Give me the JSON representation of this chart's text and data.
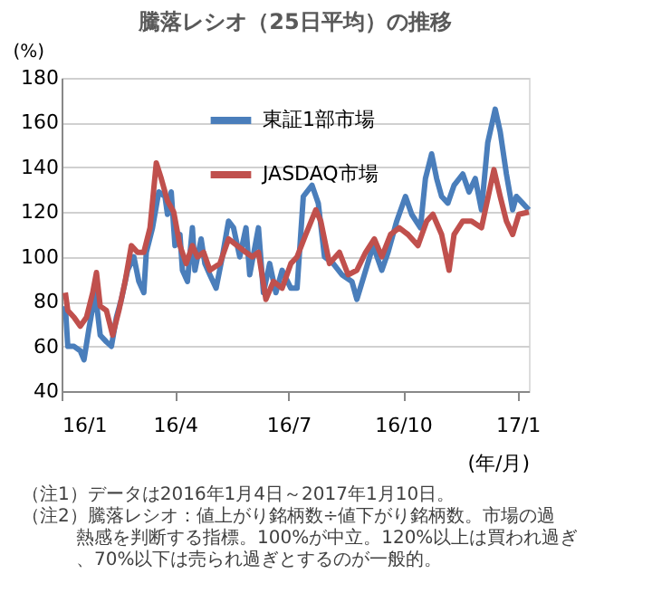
{
  "chart_data": {
    "type": "line",
    "title": "騰落レシオ（25日平均）の推移",
    "ylabel": "(%)",
    "xlabel": "(年/月)",
    "xlim": [
      "2016-01-01",
      "2017-01-10"
    ],
    "ylim": [
      40,
      180
    ],
    "yticks": [
      40,
      60,
      80,
      100,
      120,
      140,
      160,
      180
    ],
    "xticks": [
      {
        "value": "2016-01-01",
        "label": "16/1"
      },
      {
        "value": "2016-04-01",
        "label": "16/4"
      },
      {
        "value": "2016-07-01",
        "label": "16/7"
      },
      {
        "value": "2016-10-01",
        "label": "16/10"
      },
      {
        "value": "2017-01-01",
        "label": "17/1"
      }
    ],
    "grid": "y",
    "legend": "top right",
    "marker": "none",
    "line_style": "solid",
    "series": [
      {
        "name": "東証1部市場",
        "color": "#4a7ebb",
        "x": [
          "2016-01-04",
          "2016-01-06",
          "2016-01-11",
          "2016-01-16",
          "2016-01-19",
          "2016-01-23",
          "2016-01-28",
          "2016-02-01",
          "2016-02-06",
          "2016-02-10",
          "2016-02-14",
          "2016-02-18",
          "2016-02-23",
          "2016-02-28",
          "2016-03-03",
          "2016-03-07",
          "2016-03-09",
          "2016-03-14",
          "2016-03-19",
          "2016-03-24",
          "2016-03-26",
          "2016-03-29",
          "2016-04-01",
          "2016-04-05",
          "2016-04-07",
          "2016-04-11",
          "2016-04-15",
          "2016-04-17",
          "2016-04-22",
          "2016-04-25",
          "2016-04-29",
          "2016-05-04",
          "2016-05-09",
          "2016-05-14",
          "2016-05-18",
          "2016-05-23",
          "2016-05-28",
          "2016-05-31",
          "2016-06-07",
          "2016-06-11",
          "2016-06-16",
          "2016-06-21",
          "2016-06-26",
          "2016-07-03",
          "2016-07-08",
          "2016-07-13",
          "2016-07-20",
          "2016-07-25",
          "2016-07-30",
          "2016-08-06",
          "2016-08-13",
          "2016-08-21",
          "2016-08-25",
          "2016-08-31",
          "2016-09-07",
          "2016-09-14",
          "2016-09-19",
          "2016-09-26",
          "2016-10-03",
          "2016-10-08",
          "2016-10-15",
          "2016-10-19",
          "2016-10-24",
          "2016-10-28",
          "2016-11-01",
          "2016-11-06",
          "2016-11-11",
          "2016-11-18",
          "2016-11-23",
          "2016-11-28",
          "2016-12-03",
          "2016-12-08",
          "2016-12-14",
          "2016-12-18",
          "2016-12-23",
          "2016-12-28",
          "2016-12-31",
          "2017-01-05",
          "2017-01-10"
        ],
        "values": [
          78,
          60,
          60,
          58,
          54,
          68,
          84,
          65,
          62,
          60,
          73,
          81,
          94,
          100,
          89,
          84,
          102,
          113,
          129,
          127,
          119,
          129,
          105,
          110,
          94,
          89,
          113,
          94,
          108,
          97,
          92,
          86,
          100,
          116,
          113,
          100,
          113,
          92,
          113,
          84,
          97,
          84,
          94,
          86,
          86,
          127,
          132,
          124,
          100,
          97,
          92,
          89,
          81,
          92,
          105,
          94,
          102,
          116,
          127,
          119,
          113,
          135,
          146,
          135,
          127,
          124,
          132,
          137,
          129,
          135,
          121,
          151,
          166,
          156,
          137,
          121,
          127,
          124,
          121
        ]
      },
      {
        "name": "JASDAQ市場",
        "color": "#c0504d",
        "x": [
          "2016-01-04",
          "2016-01-06",
          "2016-01-11",
          "2016-01-16",
          "2016-01-21",
          "2016-01-26",
          "2016-01-29",
          "2016-02-01",
          "2016-02-06",
          "2016-02-11",
          "2016-02-16",
          "2016-02-21",
          "2016-02-26",
          "2016-03-02",
          "2016-03-07",
          "2016-03-12",
          "2016-03-17",
          "2016-03-21",
          "2016-03-26",
          "2016-03-31",
          "2016-04-05",
          "2016-04-10",
          "2016-04-15",
          "2016-04-19",
          "2016-04-24",
          "2016-04-29",
          "2016-05-07",
          "2016-05-14",
          "2016-05-21",
          "2016-05-28",
          "2016-06-02",
          "2016-06-07",
          "2016-06-13",
          "2016-06-19",
          "2016-06-26",
          "2016-07-03",
          "2016-07-08",
          "2016-07-15",
          "2016-07-23",
          "2016-07-27",
          "2016-08-03",
          "2016-08-11",
          "2016-08-18",
          "2016-08-25",
          "2016-09-01",
          "2016-09-08",
          "2016-09-14",
          "2016-09-21",
          "2016-09-28",
          "2016-10-05",
          "2016-10-13",
          "2016-10-20",
          "2016-10-25",
          "2016-11-01",
          "2016-11-07",
          "2016-11-11",
          "2016-11-18",
          "2016-11-25",
          "2016-12-03",
          "2016-12-13",
          "2016-12-18",
          "2016-12-23",
          "2016-12-28",
          "2017-01-02",
          "2017-01-10"
        ],
        "values": [
          84,
          76,
          73,
          69,
          73,
          84,
          93,
          78,
          76,
          65,
          76,
          89,
          105,
          102,
          102,
          113,
          142,
          135,
          125,
          120,
          105,
          97,
          105,
          100,
          102,
          94,
          97,
          108,
          105,
          102,
          100,
          102,
          81,
          89,
          86,
          97,
          100,
          110,
          121,
          116,
          97,
          102,
          92,
          94,
          102,
          108,
          100,
          110,
          113,
          110,
          105,
          116,
          119,
          110,
          94,
          110,
          116,
          116,
          113,
          139,
          127,
          116,
          110,
          119,
          120
        ]
      }
    ],
    "annotations": [
      "（注1）データは2016年1月4日～2017年1月10日。",
      "（注2）騰落レシオ：値上がり銘柄数÷値下がり銘柄数。市場の過熱感を判断する指標。100%が中立。120%以上は買われ過ぎ、70%以下は売られ過ぎとするのが一般的。"
    ]
  }
}
